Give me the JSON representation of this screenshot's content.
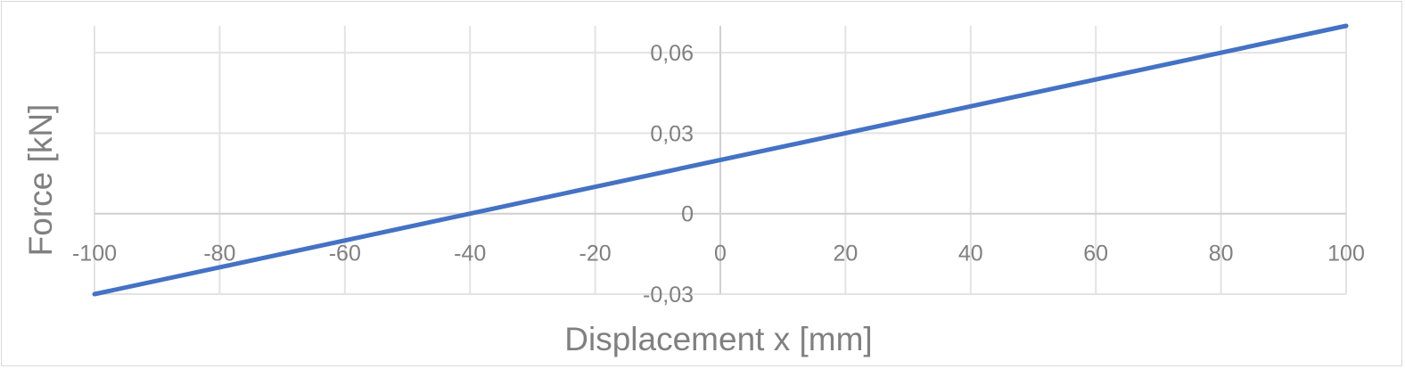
{
  "chart_data": {
    "type": "line",
    "xlabel": "Displacement x [mm]",
    "ylabel": "Force [kN]",
    "xlim": [
      -100,
      100
    ],
    "ylim": [
      -0.03,
      0.07
    ],
    "x_ticks": [
      -100,
      -80,
      -60,
      -40,
      -20,
      0,
      20,
      40,
      60,
      80,
      100
    ],
    "x_tick_labels": [
      "-100",
      "-80",
      "-60",
      "-40",
      "-20",
      "0",
      "20",
      "40",
      "60",
      "80",
      "100"
    ],
    "y_ticks": [
      -0.03,
      0,
      0.03,
      0.06
    ],
    "y_tick_labels": [
      "-0,03",
      "0",
      "0,03",
      "0,06"
    ],
    "grid": true,
    "series": [
      {
        "x": [
          -100,
          100
        ],
        "y": [
          -0.03,
          0.07
        ],
        "color": "#4472c4"
      }
    ]
  }
}
